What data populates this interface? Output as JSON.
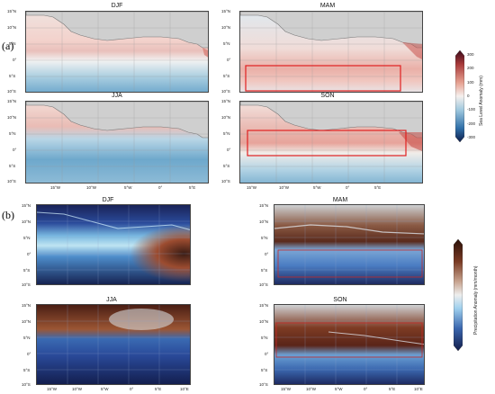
{
  "panel_labels": {
    "a": "(a)",
    "b": "(b)"
  },
  "season_titles": {
    "djf": "DJF",
    "mam": "MAM",
    "jja": "JJA",
    "son": "SON"
  },
  "lat_ticks": [
    "15°N",
    "10°N",
    "5°N",
    "0°",
    "5°S",
    "10°S"
  ],
  "lon_ticks": [
    "15°W",
    "10°W",
    "5°W",
    "0°",
    "5°E"
  ],
  "lon_ticks_b": [
    "15°W",
    "10°W",
    "5°W",
    "0°",
    "5°E",
    "10°E"
  ],
  "colorbar_a": {
    "title": "Sea Level Anomaly (mm)",
    "ticks": [
      "300",
      "200",
      "100",
      "0",
      "-100",
      "-200",
      "-300"
    ]
  },
  "colorbar_b": {
    "title": "Precipitation Anomaly (mm/month)"
  },
  "colors": {
    "land": "#cfcfcf",
    "ocean_blue": "#3f86b8",
    "ocean_red": "#c9514b",
    "highlight_box": "#e02020",
    "precip_dark": "#121c4a",
    "precip_brown": "#7a3b24"
  }
}
